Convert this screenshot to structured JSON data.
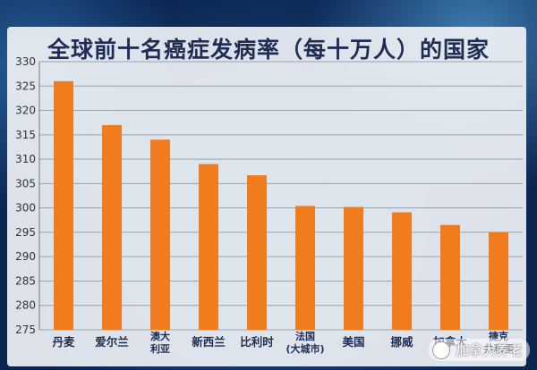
{
  "chart_data": {
    "type": "bar",
    "title": "全球前十名癌症发病率（每十万人）的国家",
    "xlabel": "",
    "ylabel": "",
    "ylim": [
      275,
      330
    ],
    "yticks": [
      275,
      280,
      285,
      290,
      295,
      300,
      305,
      310,
      315,
      320,
      325,
      330
    ],
    "grid": true,
    "legend": "none",
    "bar_color": "#f07c1e",
    "categories": [
      [
        "丹麦"
      ],
      [
        "爱尔兰"
      ],
      [
        "澳大",
        "利亚"
      ],
      [
        "新西兰"
      ],
      [
        "比利时"
      ],
      [
        "法国",
        "(大城市)"
      ],
      [
        "美国"
      ],
      [
        "挪威"
      ],
      [
        "加拿大"
      ],
      [
        "捷克",
        "共和国"
      ]
    ],
    "values": [
      326,
      317,
      314,
      309,
      306.7,
      300.4,
      300.2,
      299.1,
      296.5,
      295
    ]
  },
  "watermark": {
    "text": "加拿大养老",
    "icon": "wechat-icon"
  }
}
